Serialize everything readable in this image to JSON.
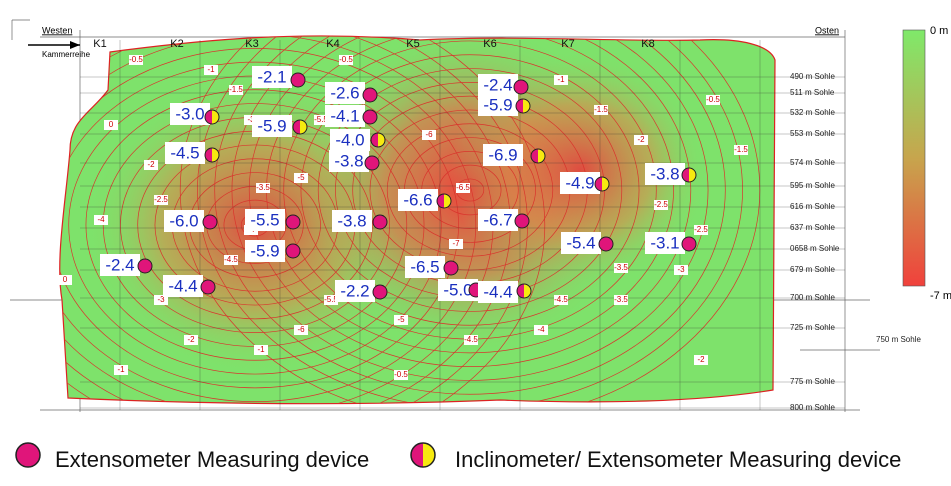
{
  "header": {
    "west": "Westen",
    "east": "Osten",
    "row_label": "Kammerreihe"
  },
  "chambers": [
    "K1",
    "K2",
    "K3",
    "K4",
    "K5",
    "K6",
    "K7",
    "K8"
  ],
  "levels": [
    "490 m Sohle",
    "511 m Sohle",
    "532 m Sohle",
    "553 m Sohle",
    "574 m Sohle",
    "595 m Sohle",
    "616 m Sohle",
    "637 m Sohle",
    "0658 m Sohle",
    "679 m Sohle",
    "700 m Sohle",
    "725 m Sohle",
    "775 m Sohle",
    "800 m Sohle"
  ],
  "side_level": "750 m Sohle",
  "scale": {
    "top": "0 m",
    "bottom": "-7 m"
  },
  "devices": [
    {
      "value": "-2.1",
      "kind": "extensometer"
    },
    {
      "value": "-3.0",
      "kind": "inclinometer"
    },
    {
      "value": "-5.9",
      "kind": "inclinometer"
    },
    {
      "value": "-4.5",
      "kind": "inclinometer"
    },
    {
      "value": "-2.6",
      "kind": "extensometer"
    },
    {
      "value": "-4.1",
      "kind": "extensometer"
    },
    {
      "value": "-4.0",
      "kind": "inclinometer"
    },
    {
      "value": "-3.8",
      "kind": "extensometer"
    },
    {
      "value": "-2.4",
      "kind": "extensometer"
    },
    {
      "value": "-5.9",
      "kind": "inclinometer"
    },
    {
      "value": "-6.9",
      "kind": "inclinometer"
    },
    {
      "value": "-4.9",
      "kind": "inclinometer"
    },
    {
      "value": "-3.8",
      "kind": "inclinometer"
    },
    {
      "value": "-6.6",
      "kind": "inclinometer"
    },
    {
      "value": "-6.0",
      "kind": "extensometer"
    },
    {
      "value": "-5.5",
      "kind": "extensometer"
    },
    {
      "value": "-3.8",
      "kind": "extensometer"
    },
    {
      "value": "-6.7",
      "kind": "extensometer"
    },
    {
      "value": "-5.9",
      "kind": "extensometer"
    },
    {
      "value": "-5.4",
      "kind": "extensometer"
    },
    {
      "value": "-3.1",
      "kind": "extensometer"
    },
    {
      "value": "-2.4",
      "kind": "extensometer"
    },
    {
      "value": "-6.5",
      "kind": "extensometer"
    },
    {
      "value": "-4.4",
      "kind": "extensometer"
    },
    {
      "value": "-2.2",
      "kind": "extensometer"
    },
    {
      "value": "-5.0",
      "kind": "extensometer"
    },
    {
      "value": "-4.4",
      "kind": "inclinometer"
    }
  ],
  "contour_labels": [
    "0",
    "-0.5",
    "-1",
    "-1.5",
    "-2",
    "-2.5",
    "-3",
    "-3.5",
    "-4",
    "-4.5",
    "-5",
    "-5.5",
    "-6",
    "-6.5",
    "-7",
    "-0.5",
    "-1",
    "-1.5",
    "-2",
    "-2.5",
    "-3",
    "-3.5",
    "-4",
    "-4.5",
    "-5",
    "-5.5",
    "-6",
    "-1",
    "-2",
    "-3",
    "-4",
    "-0.5",
    "-1.5",
    "-2.5",
    "-3.5",
    "-4.5",
    "0",
    "-1",
    "-2",
    "-0.5"
  ],
  "legend": {
    "extensometer": "Extensometer Measuring device",
    "inclinometer": "Inclinometer/ Extensometer Measuring device"
  }
}
